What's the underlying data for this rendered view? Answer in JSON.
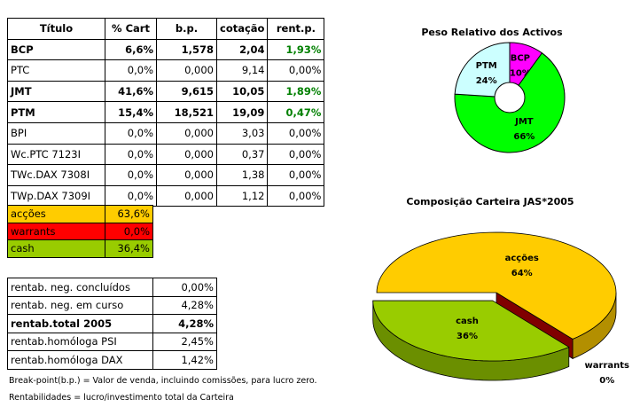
{
  "tables": {
    "t1": {
      "header": [
        "Título",
        "% Cart",
        "b.p.",
        "cotação",
        "rent.p."
      ],
      "rows": [
        [
          "BCP",
          "6,6%",
          "1,578",
          "2,04",
          "1,93%"
        ],
        [
          "PTC",
          "0,0%",
          "0,000",
          "9,14",
          "0,00%"
        ],
        [
          "JMT",
          "41,6%",
          "9,615",
          "10,05",
          "1,89%"
        ],
        [
          "PTM",
          "15,4%",
          "18,521",
          "19,09",
          "0,47%"
        ],
        [
          "BPI",
          "0,0%",
          "0,000",
          "3,03",
          "0,00%"
        ],
        [
          "Wc.PTC 7123I",
          "0,0%",
          "0,000",
          "0,37",
          "0,00%"
        ],
        [
          "TWc.DAX 7308I",
          "0,0%",
          "0,000",
          "1,38",
          "0,00%"
        ],
        [
          "TWp.DAX 7309I",
          "0,0%",
          "0,000",
          "1,12",
          "0,00%"
        ]
      ]
    },
    "t2": {
      "rows": [
        [
          "acções",
          "63,6%"
        ],
        [
          "warrants",
          "0,0%"
        ],
        [
          "cash",
          "36,4%"
        ]
      ]
    },
    "t3": {
      "rows": [
        [
          "rentab. neg. concluídos",
          "0,00%"
        ],
        [
          "rentab. neg. em curso",
          "4,28%"
        ],
        [
          "rentab.total 2005",
          "4,28%"
        ],
        [
          "rentab.homóloga PSI",
          "2,45%"
        ],
        [
          "rentab.homóloga DAX",
          "1,42%"
        ]
      ]
    }
  },
  "notes": [
    "Break-point(b.p.) = Valor de venda, incluindo comissões, para lucro zero.",
    "Rentabilidades = lucro/investimento total da Carteira"
  ],
  "chart_data": [
    {
      "type": "pie",
      "title": "Peso Relativo dos Activos",
      "donut": true,
      "categories": [
        "BCP",
        "JMT",
        "PTM"
      ],
      "values": [
        10,
        66,
        24
      ],
      "value_labels": [
        "10%",
        "66%",
        "24%"
      ],
      "colors": [
        "#ff00ff",
        "#00ff00",
        "#ccffff"
      ]
    },
    {
      "type": "pie3d",
      "title": "Composição Carteira JAS*2005",
      "categories": [
        "acções",
        "warrants",
        "cash"
      ],
      "values": [
        64,
        0,
        36
      ],
      "value_labels": [
        "64%",
        "0%",
        "36%"
      ],
      "colors": [
        "#ffcc00",
        "#800000",
        "#99cc00"
      ]
    }
  ]
}
